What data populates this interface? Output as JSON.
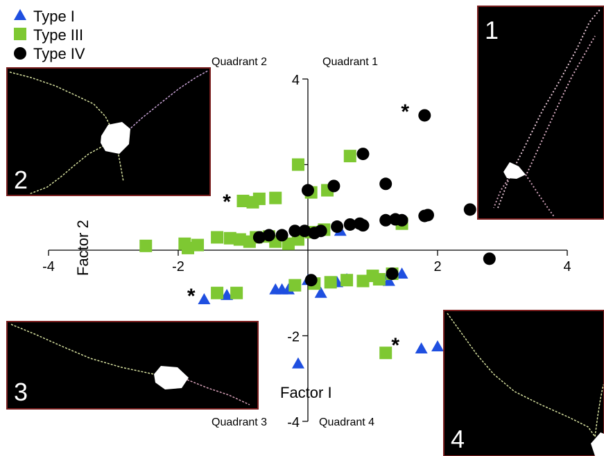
{
  "legend": {
    "items": [
      {
        "label": "Type I",
        "marker": "triangle",
        "color": "#1f4fe0"
      },
      {
        "label": "Type III",
        "marker": "square",
        "color": "#7ec832"
      },
      {
        "label": "Type IV",
        "marker": "circle",
        "color": "#000000"
      }
    ]
  },
  "quadrants": {
    "q1": "Quadrant 1",
    "q2": "Quadrant 2",
    "q3": "Quadrant 3",
    "q4": "Quadrant 4"
  },
  "insets": [
    {
      "label": "1",
      "shows": "neuron micrograph, two long dendrites"
    },
    {
      "label": "2",
      "shows": "neuron micrograph, branched dendrites"
    },
    {
      "label": "3",
      "shows": "neuron micrograph, bipolar"
    },
    {
      "label": "4",
      "shows": "neuron micrograph, single dendrite"
    }
  ],
  "chart_data": {
    "type": "scatter",
    "xlabel": "Factor I",
    "ylabel": "Factor 2",
    "xlim": [
      -4,
      4
    ],
    "ylim": [
      -4,
      4
    ],
    "x_ticks": [
      -4,
      -2,
      2,
      4
    ],
    "y_ticks": [
      4,
      2,
      -2,
      -4
    ],
    "x_tick_labels": [
      "-4",
      "-2",
      "2",
      "4"
    ],
    "y_tick_labels": [
      "4",
      "2",
      "-2",
      "-4"
    ],
    "grid": false,
    "legend_position": "top-left",
    "annotations": [
      {
        "text": "*",
        "x": 1.5,
        "y": 3.3
      },
      {
        "text": "*",
        "x": -1.25,
        "y": 1.2
      },
      {
        "text": "*",
        "x": -1.8,
        "y": -1.0
      },
      {
        "text": "*",
        "x": 1.35,
        "y": -2.15
      }
    ],
    "series": [
      {
        "name": "Type I",
        "marker": "triangle",
        "color": "#1f4fe0",
        "points": [
          [
            -1.6,
            -1.15
          ],
          [
            -1.25,
            -1.05
          ],
          [
            -0.5,
            -0.92
          ],
          [
            -0.4,
            -0.92
          ],
          [
            -0.3,
            -0.92
          ],
          [
            0.2,
            -1.0
          ],
          [
            0.6,
            -0.68
          ],
          [
            1.25,
            -0.58
          ],
          [
            1.45,
            -0.55
          ],
          [
            1.25,
            -0.72
          ],
          [
            0.45,
            -0.75
          ],
          [
            0.0,
            -0.7
          ],
          [
            -0.65,
            0.3
          ],
          [
            0.5,
            0.45
          ],
          [
            -0.15,
            -2.65
          ],
          [
            1.75,
            -2.3
          ],
          [
            2.0,
            -2.25
          ]
        ]
      },
      {
        "name": "Type III",
        "marker": "square",
        "color": "#7ec832",
        "points": [
          [
            -2.5,
            0.1
          ],
          [
            -1.9,
            0.15
          ],
          [
            -1.85,
            0.05
          ],
          [
            -1.7,
            0.12
          ],
          [
            -1.4,
            0.3
          ],
          [
            -1.2,
            0.28
          ],
          [
            -1.05,
            0.25
          ],
          [
            -0.9,
            0.2
          ],
          [
            -0.8,
            0.3
          ],
          [
            -0.6,
            0.32
          ],
          [
            -0.5,
            0.2
          ],
          [
            -0.3,
            0.15
          ],
          [
            -0.15,
            0.25
          ],
          [
            0.05,
            0.42
          ],
          [
            0.25,
            0.48
          ],
          [
            1.45,
            0.62
          ],
          [
            -1.0,
            1.15
          ],
          [
            -0.85,
            1.12
          ],
          [
            -0.75,
            1.2
          ],
          [
            -0.5,
            1.22
          ],
          [
            -0.15,
            2.0
          ],
          [
            0.65,
            2.2
          ],
          [
            0.3,
            1.4
          ],
          [
            0.05,
            1.35
          ],
          [
            -1.1,
            -1.0
          ],
          [
            -1.4,
            -1.0
          ],
          [
            -0.2,
            -0.82
          ],
          [
            0.1,
            -0.78
          ],
          [
            0.35,
            -0.75
          ],
          [
            0.6,
            -0.7
          ],
          [
            0.85,
            -0.72
          ],
          [
            1.0,
            -0.6
          ],
          [
            1.1,
            -0.68
          ],
          [
            1.3,
            -0.55
          ],
          [
            1.2,
            -2.4
          ]
        ]
      },
      {
        "name": "Type IV",
        "marker": "circle",
        "color": "#000000",
        "points": [
          [
            -0.75,
            0.3
          ],
          [
            -0.6,
            0.35
          ],
          [
            -0.4,
            0.35
          ],
          [
            -0.2,
            0.45
          ],
          [
            -0.05,
            0.45
          ],
          [
            0.2,
            0.45
          ],
          [
            0.45,
            0.55
          ],
          [
            0.65,
            0.6
          ],
          [
            0.8,
            0.62
          ],
          [
            0.85,
            0.58
          ],
          [
            1.2,
            0.7
          ],
          [
            1.35,
            0.72
          ],
          [
            1.45,
            0.7
          ],
          [
            1.8,
            0.8
          ],
          [
            1.85,
            0.82
          ],
          [
            2.5,
            0.95
          ],
          [
            2.8,
            -0.2
          ],
          [
            1.8,
            3.15
          ],
          [
            0.85,
            2.25
          ],
          [
            1.2,
            1.55
          ],
          [
            0.4,
            1.5
          ],
          [
            0.0,
            1.4
          ],
          [
            0.1,
            0.4
          ],
          [
            1.3,
            -0.55
          ],
          [
            0.05,
            -0.7
          ]
        ]
      }
    ]
  }
}
